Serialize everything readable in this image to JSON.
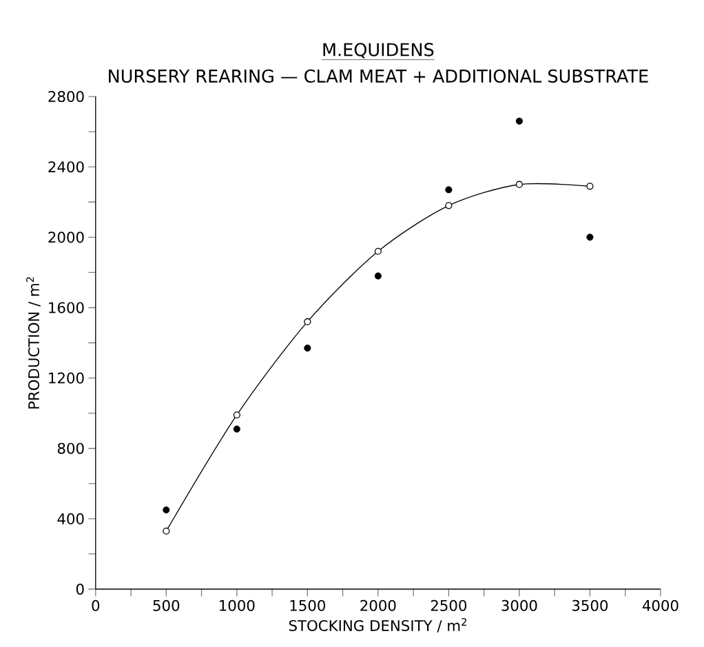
{
  "chart_data": {
    "type": "scatter",
    "title": "M.EQUIDENS",
    "subtitle": "NURSERY REARING — CLAM MEAT + ADDITIONAL SUBSTRATE",
    "xlabel": "STOCKING DENSITY / m$^{2}$",
    "ylabel": "PRODUCTION / m$^{2}$",
    "x": [
      500,
      1000,
      1500,
      2000,
      2500,
      3000,
      3500
    ],
    "series": [
      {
        "color": "#000000",
        "marker": "circle",
        "values": [
          450,
          910,
          1370,
          1780,
          2270,
          2660,
          2000
        ]
      },
      {
        "type": "line",
        "color": "#000000",
        "marker": "circle",
        "values": [
          330,
          990,
          1520,
          1920,
          2180,
          2300,
          2290
        ]
      }
    ],
    "xlim": [
      0,
      4000
    ],
    "ylim": [
      0,
      2800
    ],
    "xticks": [
      0,
      500,
      1000,
      1500,
      2000,
      2500,
      3000,
      3500,
      4000
    ],
    "yticks": [
      0,
      400,
      800,
      1200,
      1600,
      2000,
      2400,
      2800
    ],
    "grid": false
  }
}
